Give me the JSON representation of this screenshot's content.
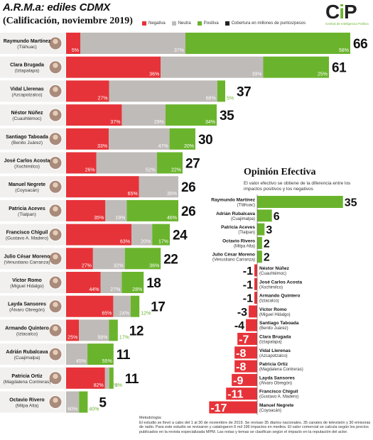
{
  "header": {
    "title": "A.R.M.a: ediles CDMX",
    "subtitle": "(Calificación, noviembre 2019)"
  },
  "legend": [
    {
      "label": "Negativa",
      "color": "#e63339"
    },
    {
      "label": "Neutra",
      "color": "#bfbbb8"
    },
    {
      "label": "Positiva",
      "color": "#6ab42d"
    },
    {
      "label": "Cobertura en millones de puntos/pesos",
      "color": "#222222"
    }
  ],
  "logo": {
    "text": "CiP",
    "subtitle": "Central de Inteligencia Política"
  },
  "colors": {
    "negative": "#e63339",
    "neutral": "#bfbbb8",
    "positive": "#6ab42d"
  },
  "chart_data": [
    {
      "type": "bar",
      "stacked": true,
      "orientation": "horizontal",
      "categories": [
        {
          "name": "Raymundo Martínez",
          "office": "(Tláhuac)"
        },
        {
          "name": "Clara Brugada",
          "office": "(Iztapalapa)"
        },
        {
          "name": "Vidal Llerenas",
          "office": "(Azcapotzalco)"
        },
        {
          "name": "Néstor Núñez",
          "office": "(Cuauhtémoc)"
        },
        {
          "name": "Santiago Taboada",
          "office": "(Benito Juárez)"
        },
        {
          "name": "José Carlos Acosta",
          "office": "(Xochimilco)"
        },
        {
          "name": "Manuel Negrete",
          "office": "(Coyoacán)"
        },
        {
          "name": "Patricia Aceves",
          "office": "(Tlalpan)"
        },
        {
          "name": "Francisco Chíguil",
          "office": "(Gustavo A. Madero)"
        },
        {
          "name": "Julio César Moreno",
          "office": "(Venustiano Carranza)"
        },
        {
          "name": "Víctor Romo",
          "office": "(Miguel Hidalgo)"
        },
        {
          "name": "Layda Sansores",
          "office": "(Álvaro Obregón)"
        },
        {
          "name": "Armando Quintero",
          "office": "(Iztacalco)"
        },
        {
          "name": "Adrián Rubalcava",
          "office": "(Cuajimalpa)"
        },
        {
          "name": "Patricia Ortiz",
          "office": "(Magdalena Contreras)"
        },
        {
          "name": "Octavio Rivero",
          "office": "(Milpa Alta)"
        }
      ],
      "series": [
        {
          "name": "Negativa",
          "values": [
            5,
            36,
            27,
            37,
            33,
            26,
            65,
            35,
            63,
            27,
            44,
            65,
            25,
            null,
            82,
            null
          ]
        },
        {
          "name": "Neutra",
          "values": [
            37,
            39,
            68,
            29,
            47,
            52,
            35,
            19,
            20,
            32,
            27,
            24,
            58,
            45,
            9,
            60
          ]
        },
        {
          "name": "Positiva",
          "values": [
            58,
            25,
            5,
            34,
            20,
            22,
            null,
            46,
            17,
            36,
            28,
            12,
            17,
            55,
            9,
            40
          ]
        }
      ],
      "coverage": [
        66,
        61,
        37,
        35,
        30,
        27,
        26,
        26,
        24,
        22,
        18,
        17,
        12,
        11,
        11,
        5
      ],
      "bar_lengths": [
        1.0,
        0.925,
        0.56,
        0.53,
        0.455,
        0.41,
        0.395,
        0.395,
        0.365,
        0.333,
        0.273,
        0.258,
        0.182,
        0.167,
        0.167,
        0.076
      ]
    },
    {
      "type": "bar",
      "orientation": "horizontal",
      "title": "Opinión Efectiva",
      "description": "El valor efectivo se obtiene de la diferencia entre los impactos positivos y los negativos",
      "categories": [
        {
          "name": "Raymundo Martínez",
          "office": "(Tláhuac)"
        },
        {
          "name": "Adrián Rubalcava",
          "office": "(Cuajimalpa)"
        },
        {
          "name": "Patricia Aceves",
          "office": "(Tlalpan)"
        },
        {
          "name": "Octavio Rivero",
          "office": "(Milpa Alta)"
        },
        {
          "name": "Julio César Moreno",
          "office": "(Venustiano Carranza)"
        },
        {
          "name": "Néstor Núñez",
          "office": "(Cuauhtémoc)"
        },
        {
          "name": "José Carlos Acosta",
          "office": "(Xochimilco)"
        },
        {
          "name": "Armando Quintero",
          "office": "(Iztacalco)"
        },
        {
          "name": "Víctor Romo",
          "office": "(Miguel Hidalgo)"
        },
        {
          "name": "Santiago Taboada",
          "office": "(Benito Juárez)"
        },
        {
          "name": "Clara Brugada",
          "office": "(Iztapalapa)"
        },
        {
          "name": "Vidal Llerenas",
          "office": "(Azcapotzalco)"
        },
        {
          "name": "Patricia Ortiz",
          "office": "(Magdalena Contreras)"
        },
        {
          "name": "Layda Sansores",
          "office": "(Álvaro Obregón)"
        },
        {
          "name": "Francisco Chíguil",
          "office": "(Gustavo A. Madero)"
        },
        {
          "name": "Manuel Negrete",
          "office": "(Coyoacán)"
        }
      ],
      "values": [
        35,
        6,
        3,
        2,
        2,
        -1,
        -1,
        -1,
        -3,
        -4,
        -7,
        -8,
        -8,
        -9,
        -11,
        -17
      ]
    }
  ],
  "footer": {
    "heading": "Metodología:",
    "text": "El estudio se llevó a cabo del 1 al 30 de noviembre de 2019. Se revisan 35 diarios nacionales, 35 canales de televisión y 30 emisoras de radio. Para este estudio se revisaron y catalogaron 6 mil 196 impactos en medios. El valor comercial se calcula según los precios publicados en la revista especializada MPM. Las notas y temas se clasifican según el impacto en la reputación del actor."
  }
}
